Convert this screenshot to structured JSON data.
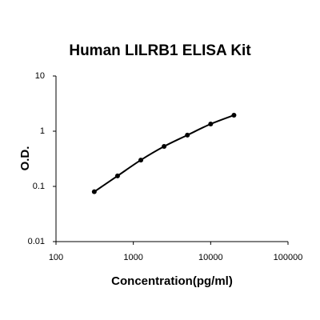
{
  "chart_data": {
    "type": "scatter",
    "title": "Human LILRB1 ELISA Kit",
    "x_label": "Concentration(pg/ml)",
    "y_label": "O.D.",
    "x": [
      312.5,
      625,
      1250,
      2500,
      5000,
      10000,
      20000
    ],
    "values": [
      0.08,
      0.155,
      0.3,
      0.53,
      0.85,
      1.35,
      1.95
    ],
    "color": "#000000",
    "line": true,
    "xlog": true,
    "ylog": true,
    "xlim": [
      100,
      100000
    ],
    "xticks": [
      100,
      1000,
      10000,
      100000
    ],
    "ylim": [
      0.01,
      10
    ],
    "yticks": [
      0.01,
      0.1,
      1,
      10
    ]
  }
}
